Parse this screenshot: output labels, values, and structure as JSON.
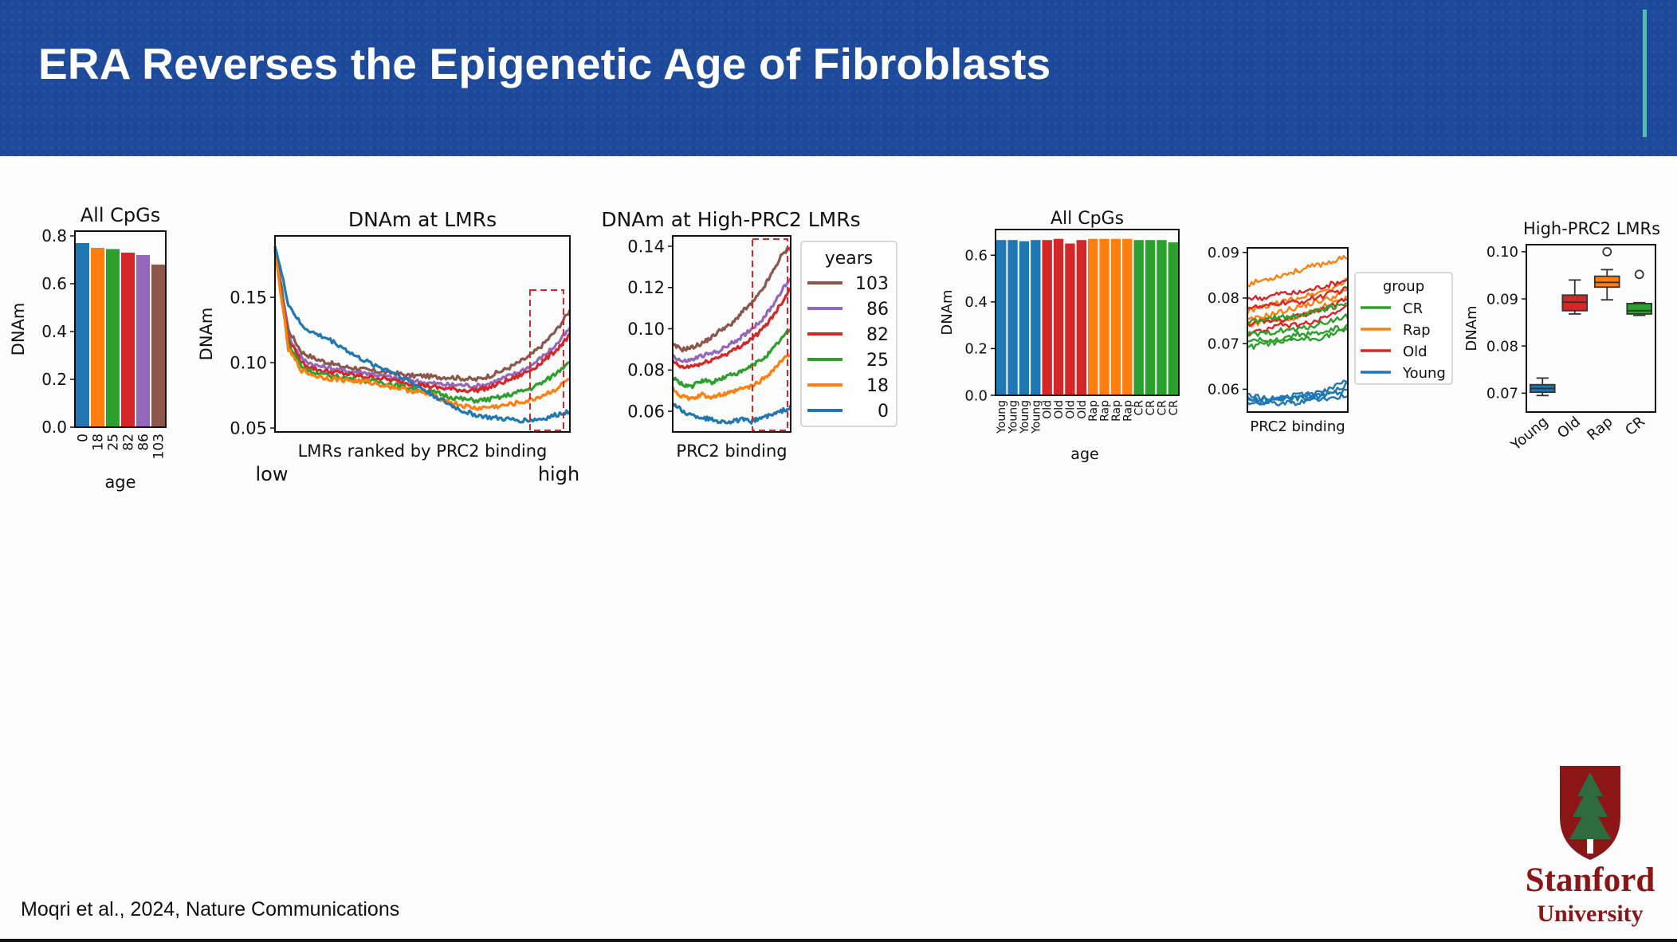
{
  "slide": {
    "title": "ERA Reverses the Epigenetic Age of Fibroblasts",
    "citation": "Moqri et al., 2024, Nature Communications",
    "logo_text": "Stanford",
    "logo_subtext": "University",
    "accent_color": "#4fc3a1",
    "banner_color": "#1d4a9a",
    "logo_color": "#8c1515"
  },
  "extra_labels": {
    "low": "low",
    "high": "high"
  },
  "chart_data": [
    {
      "type": "bar",
      "title": "All CpGs",
      "xlabel": "age",
      "ylabel": "DNAm",
      "categories": [
        "0",
        "18",
        "25",
        "82",
        "86",
        "103"
      ],
      "values": [
        0.77,
        0.75,
        0.745,
        0.73,
        0.72,
        0.68
      ],
      "colors": [
        "#1f77b4",
        "#ff7f0e",
        "#2ca02c",
        "#d62728",
        "#9467bd",
        "#8c564b"
      ],
      "ylim": [
        0,
        0.82
      ],
      "yticks": [
        "0.0",
        "0.2",
        "0.4",
        "0.6",
        "0.8"
      ]
    },
    {
      "type": "line",
      "title": "DNAm at LMRs",
      "xlabel": "LMRs ranked by PRC2 binding",
      "ylabel": "DNAm",
      "ylim": [
        0.047,
        0.197
      ],
      "yticks": [
        "0.05",
        "0.10",
        "0.15"
      ],
      "highlight_box": "dashed region at high-PRC2 end",
      "series": [
        {
          "name": "103",
          "color": "#8c564b",
          "values": [
            0.188,
            0.125,
            0.108,
            0.103,
            0.1,
            0.097,
            0.096,
            0.094,
            0.093,
            0.092,
            0.09,
            0.09,
            0.089,
            0.089,
            0.088,
            0.087,
            0.09,
            0.094,
            0.099,
            0.105,
            0.114,
            0.125,
            0.14
          ]
        },
        {
          "name": "86",
          "color": "#9467bd",
          "values": [
            0.188,
            0.12,
            0.103,
            0.098,
            0.096,
            0.094,
            0.093,
            0.092,
            0.09,
            0.088,
            0.087,
            0.085,
            0.084,
            0.083,
            0.083,
            0.082,
            0.084,
            0.088,
            0.092,
            0.097,
            0.105,
            0.114,
            0.126
          ]
        },
        {
          "name": "82",
          "color": "#d62728",
          "values": [
            0.186,
            0.118,
            0.1,
            0.095,
            0.093,
            0.092,
            0.09,
            0.089,
            0.088,
            0.086,
            0.084,
            0.083,
            0.081,
            0.08,
            0.079,
            0.079,
            0.081,
            0.085,
            0.089,
            0.094,
            0.101,
            0.11,
            0.121
          ]
        },
        {
          "name": "25",
          "color": "#2ca02c",
          "values": [
            0.186,
            0.114,
            0.097,
            0.092,
            0.09,
            0.089,
            0.087,
            0.086,
            0.085,
            0.083,
            0.081,
            0.079,
            0.077,
            0.074,
            0.072,
            0.071,
            0.072,
            0.074,
            0.077,
            0.08,
            0.085,
            0.092,
            0.102
          ]
        },
        {
          "name": "18",
          "color": "#ff7f0e",
          "values": [
            0.186,
            0.11,
            0.094,
            0.09,
            0.088,
            0.087,
            0.086,
            0.085,
            0.083,
            0.081,
            0.079,
            0.077,
            0.074,
            0.07,
            0.067,
            0.065,
            0.066,
            0.067,
            0.069,
            0.071,
            0.075,
            0.08,
            0.088
          ]
        },
        {
          "name": "0",
          "color": "#1f77b4",
          "values": [
            0.19,
            0.145,
            0.128,
            0.122,
            0.118,
            0.112,
            0.105,
            0.1,
            0.096,
            0.092,
            0.086,
            0.08,
            0.074,
            0.068,
            0.063,
            0.06,
            0.058,
            0.057,
            0.056,
            0.056,
            0.057,
            0.06,
            0.063
          ]
        }
      ]
    },
    {
      "type": "line",
      "title": "DNAm at High-PRC2 LMRs",
      "xlabel": "PRC2 binding",
      "ylim": [
        0.05,
        0.145
      ],
      "yticks": [
        "0.06",
        "0.08",
        "0.10",
        "0.12",
        "0.14"
      ],
      "legend_title": "years",
      "legend_placement": "right",
      "highlight_box": "dashed region at high-PRC2 end",
      "series": [
        {
          "name": "103",
          "color": "#8c564b",
          "values": [
            0.092,
            0.09,
            0.091,
            0.093,
            0.096,
            0.1,
            0.102,
            0.108,
            0.112,
            0.118,
            0.126,
            0.135,
            0.14
          ]
        },
        {
          "name": "86",
          "color": "#9467bd",
          "values": [
            0.087,
            0.084,
            0.085,
            0.087,
            0.088,
            0.09,
            0.093,
            0.096,
            0.1,
            0.104,
            0.11,
            0.118,
            0.124
          ]
        },
        {
          "name": "82",
          "color": "#d62728",
          "values": [
            0.084,
            0.081,
            0.082,
            0.083,
            0.085,
            0.087,
            0.089,
            0.092,
            0.095,
            0.099,
            0.105,
            0.112,
            0.12
          ]
        },
        {
          "name": "25",
          "color": "#2ca02c",
          "values": [
            0.076,
            0.073,
            0.072,
            0.075,
            0.074,
            0.076,
            0.078,
            0.079,
            0.082,
            0.085,
            0.089,
            0.095,
            0.1
          ]
        },
        {
          "name": "18",
          "color": "#ff7f0e",
          "values": [
            0.071,
            0.067,
            0.066,
            0.068,
            0.067,
            0.068,
            0.069,
            0.071,
            0.072,
            0.075,
            0.079,
            0.084,
            0.088
          ]
        },
        {
          "name": "0",
          "color": "#1f77b4",
          "values": [
            0.064,
            0.06,
            0.058,
            0.057,
            0.056,
            0.055,
            0.055,
            0.056,
            0.055,
            0.057,
            0.058,
            0.06,
            0.062
          ]
        }
      ]
    },
    {
      "type": "bar",
      "title": "All CpGs",
      "xlabel": "age",
      "ylabel": "DNAm",
      "categories": [
        "Young",
        "Young",
        "Young",
        "Young",
        "Old",
        "Old",
        "Old",
        "Old",
        "Rap",
        "Rap",
        "Rap",
        "Rap",
        "CR",
        "CR",
        "CR",
        "CR"
      ],
      "values": [
        0.665,
        0.665,
        0.66,
        0.665,
        0.665,
        0.67,
        0.65,
        0.665,
        0.67,
        0.67,
        0.67,
        0.67,
        0.665,
        0.665,
        0.665,
        0.655
      ],
      "colors": [
        "#1f77b4",
        "#1f77b4",
        "#1f77b4",
        "#1f77b4",
        "#d62728",
        "#d62728",
        "#d62728",
        "#d62728",
        "#ff7f0e",
        "#ff7f0e",
        "#ff7f0e",
        "#ff7f0e",
        "#2ca02c",
        "#2ca02c",
        "#2ca02c",
        "#2ca02c"
      ],
      "ylim": [
        0,
        0.71
      ],
      "yticks": [
        "0.0",
        "0.2",
        "0.4",
        "0.6"
      ]
    },
    {
      "type": "line",
      "xlabel": "PRC2 binding",
      "ylim": [
        0.055,
        0.091
      ],
      "yticks": [
        "0.06",
        "0.07",
        "0.08",
        "0.09"
      ],
      "legend_title": "group",
      "legend_placement": "right",
      "series": [
        {
          "name": "Rap",
          "color": "#ff7f0e",
          "values": [
            0.083,
            0.084,
            0.085,
            0.086,
            0.087,
            0.088,
            0.089
          ]
        },
        {
          "name": "Rap",
          "color": "#ff7f0e",
          "values": [
            0.077,
            0.078,
            0.079,
            0.08,
            0.081,
            0.082,
            0.084
          ]
        },
        {
          "name": "Rap",
          "color": "#ff7f0e",
          "values": [
            0.075,
            0.076,
            0.077,
            0.078,
            0.079,
            0.08,
            0.082
          ]
        },
        {
          "name": "Rap",
          "color": "#ff7f0e",
          "values": [
            0.074,
            0.075,
            0.075,
            0.076,
            0.077,
            0.079,
            0.08
          ]
        },
        {
          "name": "Old",
          "color": "#d62728",
          "values": [
            0.08,
            0.08,
            0.081,
            0.081,
            0.082,
            0.083,
            0.084
          ]
        },
        {
          "name": "Old",
          "color": "#d62728",
          "values": [
            0.078,
            0.078,
            0.079,
            0.079,
            0.08,
            0.081,
            0.082
          ]
        },
        {
          "name": "Old",
          "color": "#d62728",
          "values": [
            0.074,
            0.075,
            0.075,
            0.076,
            0.077,
            0.078,
            0.08
          ]
        },
        {
          "name": "Old",
          "color": "#d62728",
          "values": [
            0.072,
            0.073,
            0.074,
            0.074,
            0.075,
            0.076,
            0.078
          ]
        },
        {
          "name": "CR",
          "color": "#2ca02c",
          "values": [
            0.075,
            0.075,
            0.076,
            0.076,
            0.077,
            0.078,
            0.079
          ]
        },
        {
          "name": "CR",
          "color": "#2ca02c",
          "values": [
            0.072,
            0.072,
            0.073,
            0.073,
            0.074,
            0.075,
            0.076
          ]
        },
        {
          "name": "CR",
          "color": "#2ca02c",
          "values": [
            0.07,
            0.071,
            0.071,
            0.072,
            0.072,
            0.073,
            0.074
          ]
        },
        {
          "name": "CR",
          "color": "#2ca02c",
          "values": [
            0.069,
            0.07,
            0.07,
            0.071,
            0.071,
            0.072,
            0.073
          ]
        },
        {
          "name": "Young",
          "color": "#1f77b4",
          "values": [
            0.059,
            0.058,
            0.058,
            0.059,
            0.059,
            0.06,
            0.062
          ]
        },
        {
          "name": "Young",
          "color": "#1f77b4",
          "values": [
            0.058,
            0.058,
            0.058,
            0.058,
            0.059,
            0.059,
            0.061
          ]
        },
        {
          "name": "Young",
          "color": "#1f77b4",
          "values": [
            0.058,
            0.057,
            0.058,
            0.058,
            0.058,
            0.059,
            0.06
          ]
        },
        {
          "name": "Young",
          "color": "#1f77b4",
          "values": [
            0.057,
            0.057,
            0.057,
            0.057,
            0.058,
            0.058,
            0.059
          ]
        }
      ],
      "legend": [
        {
          "name": "CR",
          "color": "#2ca02c"
        },
        {
          "name": "Rap",
          "color": "#ff7f0e"
        },
        {
          "name": "Old",
          "color": "#d62728"
        },
        {
          "name": "Young",
          "color": "#1f77b4"
        }
      ]
    },
    {
      "type": "box",
      "title": "High-PRC2 LMRs",
      "ylabel": "DNAm",
      "ylim": [
        0.066,
        0.1015
      ],
      "yticks": [
        "0.07",
        "0.08",
        "0.09",
        "0.10"
      ],
      "categories": [
        "Young",
        "Old",
        "Rap",
        "CR"
      ],
      "colors": [
        "#1f77b4",
        "#d62728",
        "#ff7f0e",
        "#2ca02c"
      ],
      "boxes": [
        {
          "min": 0.0695,
          "q1": 0.0702,
          "median": 0.071,
          "q3": 0.0718,
          "max": 0.0732,
          "outliers": []
        },
        {
          "min": 0.0868,
          "q1": 0.0875,
          "median": 0.0893,
          "q3": 0.0908,
          "max": 0.094,
          "outliers": []
        },
        {
          "min": 0.0898,
          "q1": 0.0925,
          "median": 0.0935,
          "q3": 0.0948,
          "max": 0.0962,
          "outliers": [
            0.1
          ]
        },
        {
          "min": 0.0865,
          "q1": 0.0868,
          "median": 0.0875,
          "q3": 0.089,
          "max": 0.0892,
          "outliers": [
            0.0952
          ]
        }
      ]
    }
  ]
}
